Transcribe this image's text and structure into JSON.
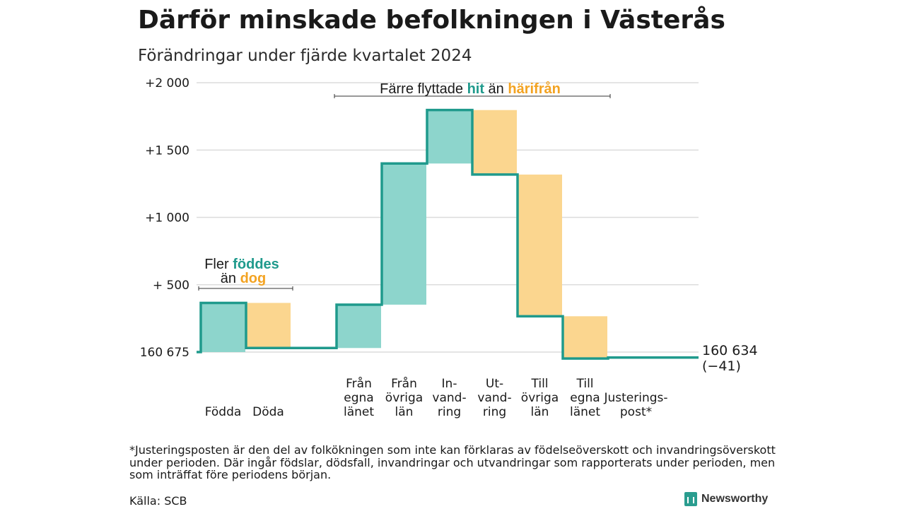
{
  "title": "Därför minskade befolkningen i Västerås",
  "subtitle": "Förändringar under fjärde kvartalet 2024",
  "chart_data": {
    "type": "waterfall",
    "start_value": 160675,
    "end_value": 160634,
    "ylim": [
      0,
      2000
    ],
    "grid": true,
    "y_ticks": [
      {
        "value": 0,
        "label": "160 675"
      },
      {
        "value": 500,
        "label": "+  500"
      },
      {
        "value": 1000,
        "label": "+1 000"
      },
      {
        "value": 1500,
        "label": "+1 500"
      },
      {
        "value": 2000,
        "label": "+2 000"
      }
    ],
    "steps": [
      {
        "label": [
          "Födda"
        ],
        "value": 365,
        "kind": "in",
        "color": "#8dd5cc"
      },
      {
        "label": [
          "Döda"
        ],
        "value": -335,
        "kind": "out",
        "color": "#fbd68f"
      },
      {
        "label": [],
        "value": 0,
        "kind": "gap"
      },
      {
        "label": [
          "Från",
          "egna",
          "länet"
        ],
        "value": 322,
        "kind": "in",
        "color": "#8dd5cc"
      },
      {
        "label": [
          "Från",
          "övriga",
          "län"
        ],
        "value": 1048,
        "kind": "in",
        "color": "#8dd5cc"
      },
      {
        "label": [
          "In-",
          "vand-",
          "ring"
        ],
        "value": 397,
        "kind": "in",
        "color": "#8dd5cc"
      },
      {
        "label": [
          "Ut-",
          "vand-",
          "ring"
        ],
        "value": -479,
        "kind": "out",
        "color": "#fbd68f"
      },
      {
        "label": [
          "Till",
          "övriga",
          "län"
        ],
        "value": -1052,
        "kind": "out",
        "color": "#fbd68f"
      },
      {
        "label": [
          "Till",
          "egna",
          "länet"
        ],
        "value": -314,
        "kind": "out",
        "color": "#fbd68f"
      },
      {
        "label": [
          "Justerings-",
          "post*"
        ],
        "value": 7,
        "kind": "adjust"
      }
    ],
    "end_label": [
      "160 634",
      "(−41)"
    ],
    "annotations": [
      {
        "text_parts": [
          {
            "t": "Fler ",
            "c": "#1a1a1a"
          },
          {
            "t": "föddes",
            "c": "#1f9a8c",
            "bold": true
          }
        ],
        "text_parts2": [
          {
            "t": "än ",
            "c": "#1a1a1a"
          },
          {
            "t": "dog",
            "c": "#f3a322",
            "bold": true
          }
        ]
      },
      {
        "text_parts": [
          {
            "t": "Färre flyttade ",
            "c": "#1a1a1a"
          },
          {
            "t": "hit",
            "c": "#1f9a8c",
            "bold": true
          },
          {
            "t": " än ",
            "c": "#1a1a1a"
          },
          {
            "t": "härifrån",
            "c": "#f3a322",
            "bold": true
          }
        ]
      }
    ],
    "colors": {
      "line": "#1f9a8c",
      "in": "#8dd5cc",
      "out": "#fbd68f",
      "grid": "#dcdcdc",
      "teal_text": "#1f9a8c",
      "orange_text": "#f3a322"
    }
  },
  "footnote": "*Justeringsposten är den del av folkökningen som inte kan förklaras av födelseöverskott och invandringsöverskott under perioden. Där ingår födslar, dödsfall, invandringar och utvandringar som rapporterats under perioden, men som inträffat före periodens början.",
  "source": "Källa: SCB",
  "brand": {
    "name": "Newsworthy",
    "icon": "bar-chart-icon",
    "color": "#2a9d8f"
  }
}
